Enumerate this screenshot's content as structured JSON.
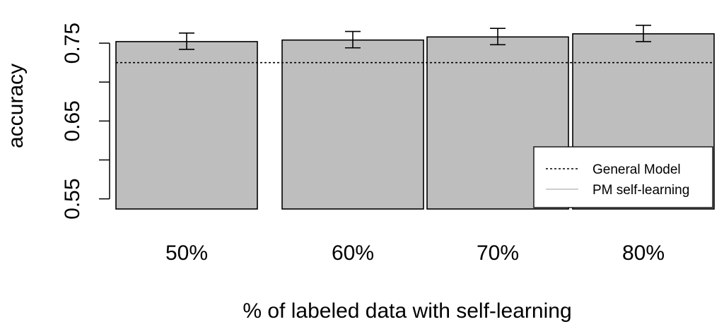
{
  "chart_data": {
    "type": "bar",
    "categories": [
      "50%",
      "60%",
      "70%",
      "80%"
    ],
    "series": [
      {
        "values": [
          0.752,
          0.754,
          0.758,
          0.762
        ],
        "error_low": [
          0.742,
          0.744,
          0.748,
          0.752
        ],
        "error_high": [
          0.763,
          0.765,
          0.769,
          0.773
        ]
      }
    ],
    "reference_line": {
      "value": 0.725,
      "style": "dotted"
    },
    "xlabel": "% of labeled data with self-learning",
    "ylabel": "accuracy",
    "yticks": [
      0.55,
      0.6,
      0.65,
      0.7,
      0.75
    ],
    "ytick_labels": [
      "0.55",
      "0.65",
      "0.75"
    ],
    "ylim": [
      0.537,
      0.8
    ],
    "grid": false,
    "legend": {
      "placement": "bottom-right",
      "entries": [
        {
          "label": "General Model",
          "style": "dotted",
          "color": "#000000"
        },
        {
          "label": "PM self-learning",
          "style": "solid",
          "color": "#bebebe"
        }
      ]
    },
    "colors": {
      "bar_fill": "#bebebe",
      "bar_stroke": "#000000"
    }
  }
}
